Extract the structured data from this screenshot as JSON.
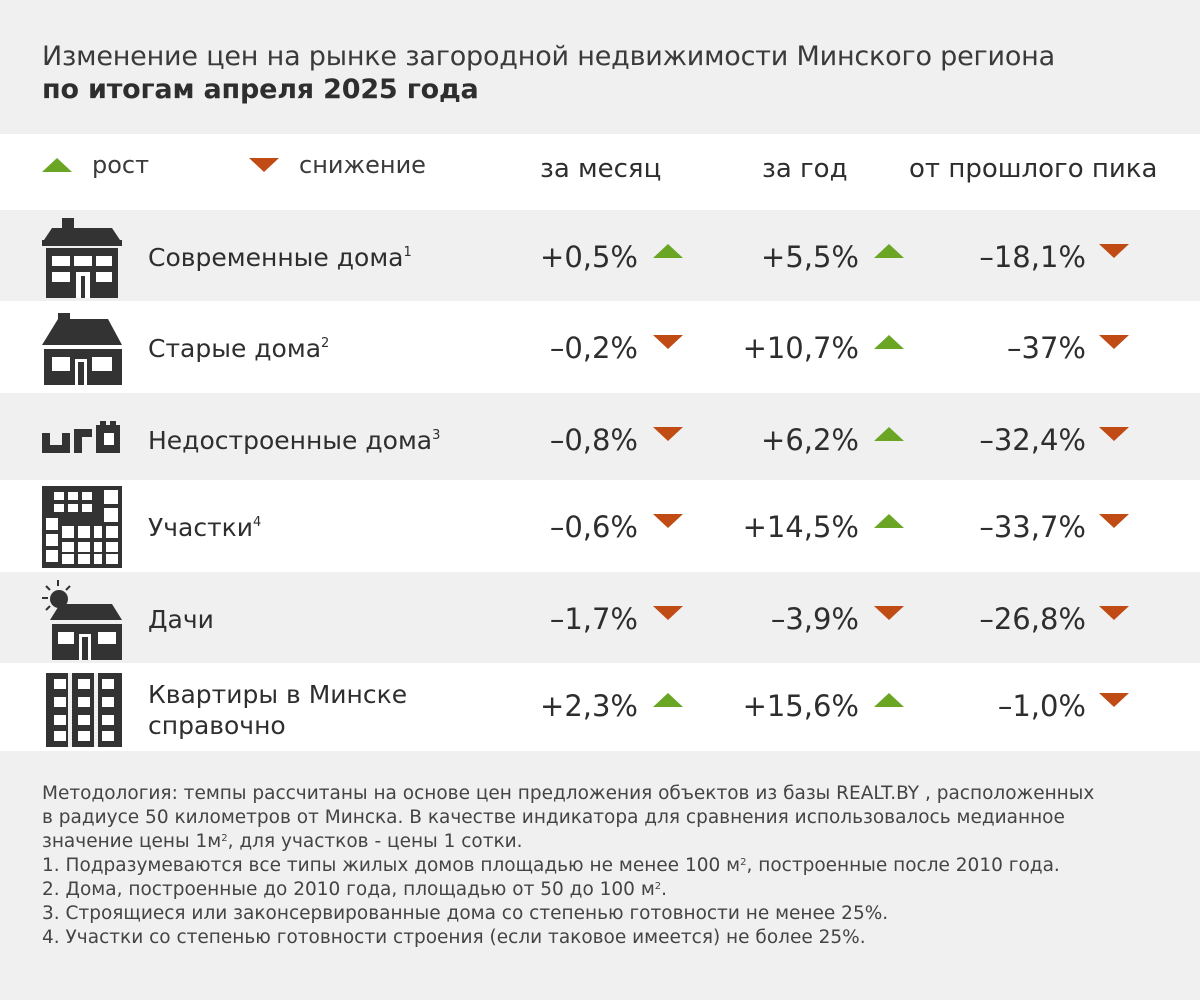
{
  "title": {
    "line1": "Изменение цен на рынке загородной недвижимости Минского региона",
    "line2": "по итогам апреля 2025 года"
  },
  "legend": {
    "up_label": "рост",
    "down_label": "снижение",
    "up_color": "#6aa624",
    "down_color": "#c04b14"
  },
  "columns": {
    "month": "за месяц",
    "year": "за год",
    "peak": "от прошлого пика"
  },
  "chart_data": {
    "type": "table",
    "title": "Изменение цен на рынке загородной недвижимости Минского региона по итогам апреля 2025 года",
    "columns": [
      "за месяц",
      "за год",
      "от прошлого пика"
    ],
    "rows": [
      {
        "label": "Современные дома",
        "footnote": "1",
        "icon": "modern-house-icon",
        "month": "+0,5%",
        "month_dir": "up",
        "year": "+5,5%",
        "year_dir": "up",
        "peak": "–18,1%",
        "peak_dir": "down"
      },
      {
        "label": "Старые дома",
        "footnote": "2",
        "icon": "old-house-icon",
        "month": "–0,2%",
        "month_dir": "down",
        "year": "+10,7%",
        "year_dir": "up",
        "peak": "–37%",
        "peak_dir": "down"
      },
      {
        "label": "Недостроенные дома",
        "footnote": "3",
        "icon": "unfinished-house-icon",
        "month": "–0,8%",
        "month_dir": "down",
        "year": "+6,2%",
        "year_dir": "up",
        "peak": "–32,4%",
        "peak_dir": "down"
      },
      {
        "label": "Участки",
        "footnote": "4",
        "icon": "land-plot-icon",
        "month": "–0,6%",
        "month_dir": "down",
        "year": "+14,5%",
        "year_dir": "up",
        "peak": "–33,7%",
        "peak_dir": "down"
      },
      {
        "label": "Дачи",
        "footnote": "",
        "icon": "dacha-sun-icon",
        "month": "–1,7%",
        "month_dir": "down",
        "year": "–3,9%",
        "year_dir": "down",
        "peak": "–26,8%",
        "peak_dir": "down"
      },
      {
        "label": "Квартиры в Минске справочно",
        "label_line1": "Квартиры в Минске",
        "label_line2": "справочно",
        "footnote": "",
        "icon": "apartment-building-icon",
        "month": "+2,3%",
        "month_dir": "up",
        "year": "+15,6%",
        "year_dir": "up",
        "peak": "–1,0%",
        "peak_dir": "down"
      }
    ]
  },
  "notes": {
    "methodology_l1": "Методология: темпы рассчитаны на основе цен предложения объектов из базы REALT.BY , расположенных",
    "methodology_l2": "в радиусе 50 километров от Минска. В качестве индикатора для сравнения использовалось медианное",
    "methodology_l3a": "значение цены 1м",
    "methodology_l3sup": "2",
    "methodology_l3b": ", для участков  - цены 1 сотки.",
    "fn1a": "1. Подразумеваются все типы жилых домов площадью не менее 100 м",
    "fn1sup": "2",
    "fn1b": ", построенные после 2010 года.",
    "fn2a": "2. Дома, построенные до 2010 года, площадью от 50 до 100 м",
    "fn2sup": "2",
    "fn2b": ".",
    "fn3": "3. Строящиеся или законсервированные дома со степенью готовности не менее 25%.",
    "fn4": "4. Участки со степенью готовности строения (если таковое имеется) не более 25%."
  }
}
